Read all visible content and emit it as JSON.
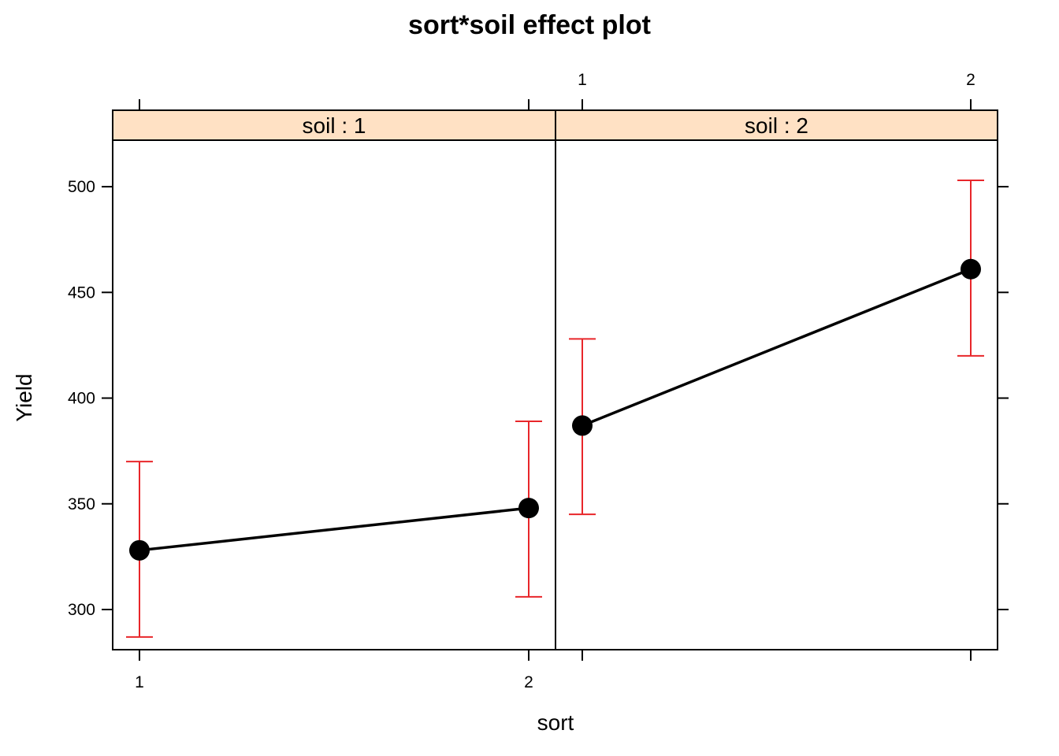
{
  "chart_data": {
    "type": "line",
    "title": "sort*soil effect plot",
    "xlabel": "sort",
    "ylabel": "Yield",
    "ylim": [
      281,
      522
    ],
    "y_ticks": [
      300,
      350,
      400,
      450,
      500
    ],
    "x_categories": [
      "1",
      "2"
    ],
    "panels": [
      {
        "strip": "soil : 1",
        "points": [
          {
            "x": "1",
            "y": 328,
            "lower": 287,
            "upper": 370
          },
          {
            "x": "2",
            "y": 348,
            "lower": 306,
            "upper": 389
          }
        ]
      },
      {
        "strip": "soil : 2",
        "points": [
          {
            "x": "1",
            "y": 387,
            "lower": 345,
            "upper": 428
          },
          {
            "x": "2",
            "y": 461,
            "lower": 420,
            "upper": 503
          }
        ]
      }
    ],
    "colors": {
      "strip_fill": "#FFE1C4",
      "line": "#000000",
      "point": "#000000",
      "error_bar": "#E8262A",
      "frame": "#000000"
    }
  }
}
